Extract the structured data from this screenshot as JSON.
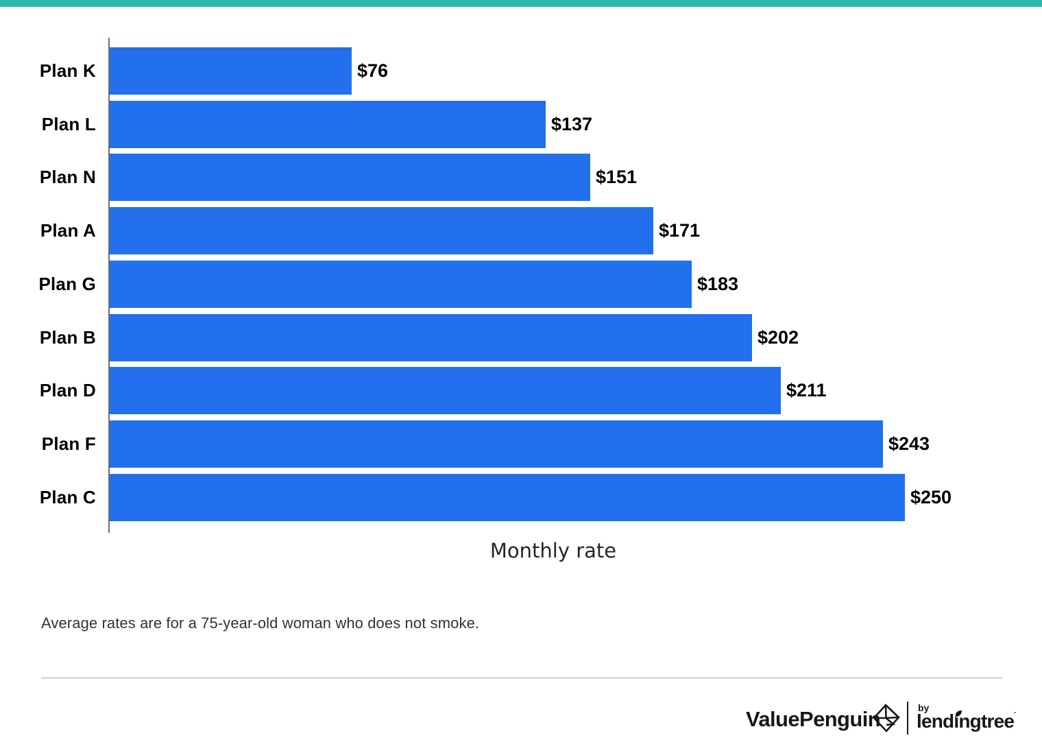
{
  "page": {
    "background": "#ffffff",
    "accent_bar_color": "#2CB9AE"
  },
  "chart_data": {
    "type": "bar",
    "orientation": "horizontal",
    "title": "",
    "xlabel": "Monthly rate",
    "ylabel": "",
    "xlim": [
      0,
      250
    ],
    "grid": false,
    "legend_position": "none",
    "bar_color": "#2270EE",
    "categories": [
      "Plan K",
      "Plan L",
      "Plan N",
      "Plan A",
      "Plan G",
      "Plan B",
      "Plan D",
      "Plan F",
      "Plan C"
    ],
    "values": [
      76,
      137,
      151,
      171,
      183,
      202,
      211,
      243,
      250
    ],
    "value_labels": [
      "$76",
      "$137",
      "$151",
      "$171",
      "$183",
      "$202",
      "$211",
      "$243",
      "$250"
    ]
  },
  "footnote": "Average rates are for a 75-year-old woman who does not smoke.",
  "footer": {
    "brand": "ValuePenguin",
    "by_label": "by",
    "partner_word_start": "lend",
    "partner_word_i": "ı",
    "partner_word_end": "ngtree",
    "trademark": "·"
  },
  "icons": {
    "valuepenguin_icon": "origami-penguin-diamond",
    "lendingtree_leaf_icon": "leaf"
  },
  "colors": {
    "bar_blue": "#2270EE",
    "axis_gray": "#6E6E6E",
    "divider_gray": "#DCDCDC",
    "text_black": "#000000",
    "axis_title_dark": "#262626",
    "footnote_gray": "#333333",
    "logo_dark": "#16181D",
    "accent_teal": "#2CB9AE"
  }
}
